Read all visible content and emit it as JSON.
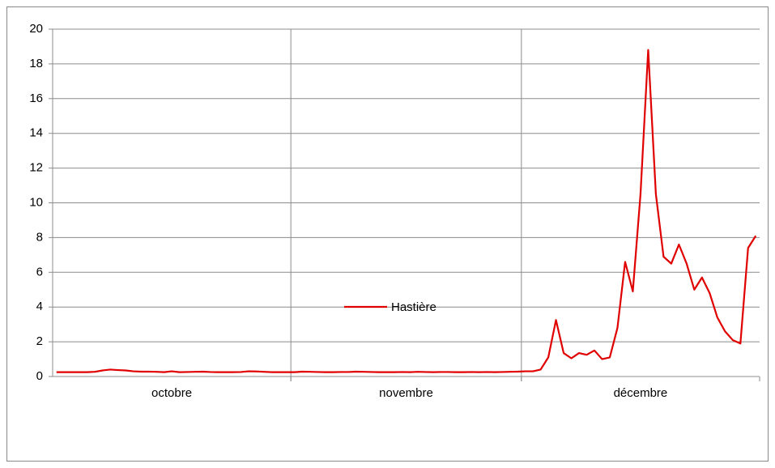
{
  "chart_data": {
    "type": "line",
    "categories": [
      "octobre",
      "novembre",
      "décembre"
    ],
    "series": [
      {
        "name": "Hastière",
        "color": "#e00000",
        "values": [
          [
            0.25,
            0.25,
            0.25,
            0.25,
            0.25,
            0.27,
            0.35,
            0.4,
            0.37,
            0.35,
            0.3,
            0.28,
            0.28,
            0.27,
            0.25,
            0.3,
            0.25,
            0.26,
            0.27,
            0.28,
            0.26,
            0.25,
            0.25,
            0.25,
            0.26,
            0.3,
            0.29,
            0.27,
            0.25,
            0.25,
            0.25
          ],
          [
            0.25,
            0.28,
            0.27,
            0.26,
            0.25,
            0.25,
            0.26,
            0.26,
            0.28,
            0.27,
            0.26,
            0.25,
            0.25,
            0.25,
            0.26,
            0.25,
            0.27,
            0.26,
            0.25,
            0.26,
            0.26,
            0.25,
            0.25,
            0.26,
            0.25,
            0.26,
            0.25,
            0.26,
            0.27,
            0.28
          ],
          [
            0.3,
            0.3,
            0.4,
            1.1,
            3.25,
            1.35,
            1.05,
            1.35,
            1.25,
            1.5,
            1.0,
            1.1,
            2.8,
            6.6,
            4.9,
            10.5,
            18.8,
            10.5,
            6.9,
            6.5,
            7.6,
            6.5,
            5.0,
            5.7,
            4.8,
            3.4,
            2.6,
            2.1,
            1.9,
            7.4,
            8.1
          ]
        ]
      }
    ],
    "ylim": [
      0,
      20
    ],
    "yticks": [
      0,
      2,
      4,
      6,
      8,
      10,
      12,
      14,
      16,
      18,
      20
    ],
    "grid": true,
    "legend": "bottom"
  }
}
